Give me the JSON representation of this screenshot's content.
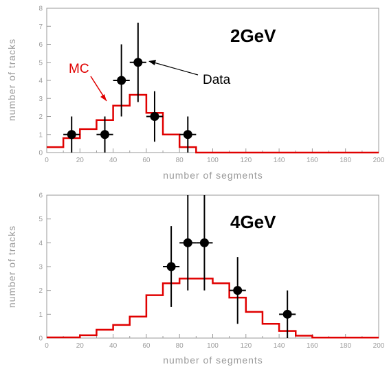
{
  "colors": {
    "mc": "#e00000",
    "data": "#000000",
    "axis": "#9a9a9a"
  },
  "chart_data": [
    {
      "type": "histogram",
      "title": "2GeV",
      "xlabel": "number of segments",
      "ylabel": "number of tracks",
      "xlim": [
        0,
        200
      ],
      "ylim": [
        0,
        8
      ],
      "xticks": [
        0,
        20,
        40,
        60,
        80,
        100,
        120,
        140,
        160,
        180,
        200
      ],
      "yticks": [
        0,
        1,
        2,
        3,
        4,
        5,
        6,
        7,
        8
      ],
      "annotations": {
        "mc": "MC",
        "data": "Data"
      },
      "series": [
        {
          "name": "MC",
          "kind": "step",
          "bin_edges": [
            0,
            10,
            20,
            30,
            40,
            50,
            60,
            70,
            80,
            90,
            200
          ],
          "values": [
            0.3,
            0.8,
            1.3,
            1.8,
            2.6,
            3.2,
            2.2,
            1.0,
            0.3,
            0.0
          ]
        },
        {
          "name": "Data",
          "kind": "points_with_errors",
          "points": [
            {
              "x": 15,
              "y": 1,
              "err": 1.0
            },
            {
              "x": 35,
              "y": 1,
              "err": 1.0
            },
            {
              "x": 45,
              "y": 4,
              "err": 2.0
            },
            {
              "x": 55,
              "y": 5,
              "err": 2.2
            },
            {
              "x": 65,
              "y": 2,
              "err": 1.4
            },
            {
              "x": 85,
              "y": 1,
              "err": 1.0
            }
          ]
        }
      ]
    },
    {
      "type": "histogram",
      "title": "4GeV",
      "xlabel": "number of segments",
      "ylabel": "number of tracks",
      "xlim": [
        0,
        200
      ],
      "ylim": [
        0,
        6
      ],
      "xticks": [
        0,
        20,
        40,
        60,
        80,
        100,
        120,
        140,
        160,
        180,
        200
      ],
      "yticks": [
        0,
        1,
        2,
        3,
        4,
        5,
        6
      ],
      "series": [
        {
          "name": "MC",
          "kind": "step",
          "bin_edges": [
            0,
            20,
            30,
            40,
            50,
            60,
            70,
            80,
            90,
            100,
            110,
            120,
            130,
            140,
            150,
            160,
            200
          ],
          "values": [
            0.03,
            0.12,
            0.35,
            0.55,
            0.9,
            1.8,
            2.3,
            2.5,
            2.5,
            2.3,
            1.7,
            1.1,
            0.6,
            0.3,
            0.1,
            0.02
          ]
        },
        {
          "name": "Data",
          "kind": "points_with_errors",
          "points": [
            {
              "x": 75,
              "y": 3,
              "err": 1.7
            },
            {
              "x": 85,
              "y": 4,
              "err": 2.0
            },
            {
              "x": 95,
              "y": 4,
              "err": 2.0
            },
            {
              "x": 115,
              "y": 2,
              "err": 1.4
            },
            {
              "x": 145,
              "y": 1,
              "err": 1.0
            }
          ]
        }
      ]
    }
  ]
}
